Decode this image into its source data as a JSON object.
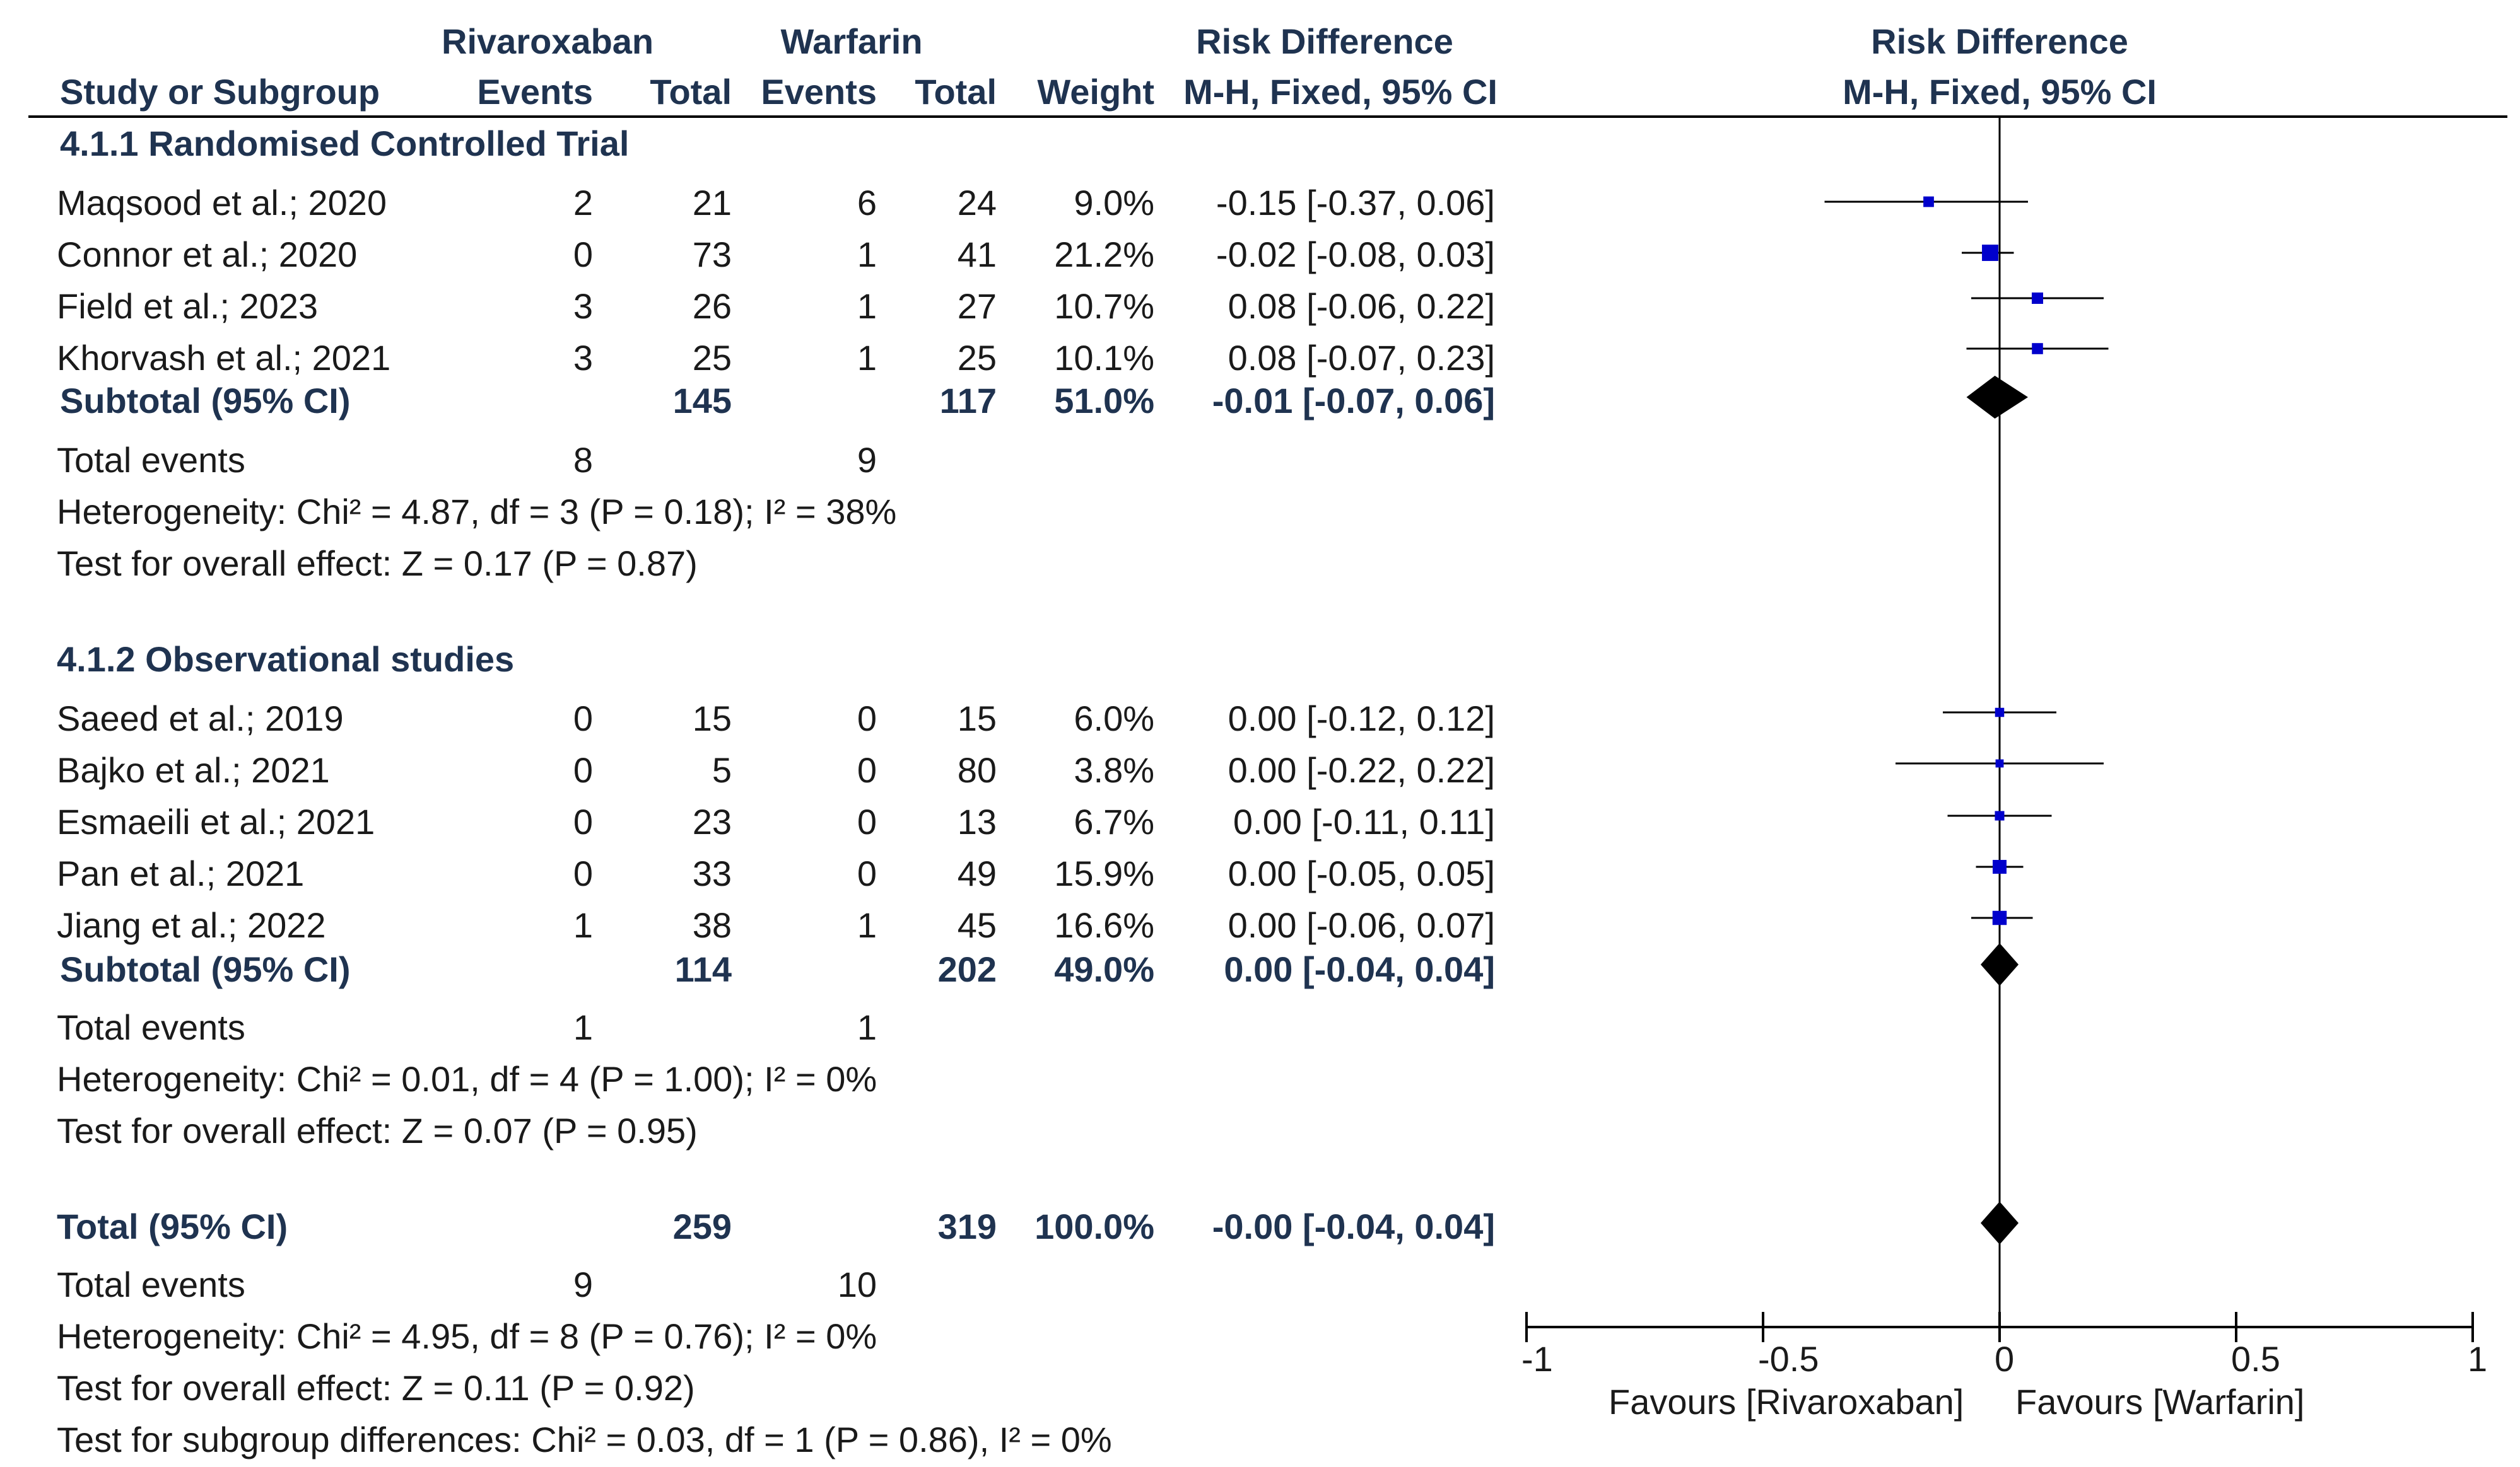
{
  "header": {
    "study_col": "Study or Subgroup",
    "group1": "Rivaroxaban",
    "group2": "Warfarin",
    "events": "Events",
    "total": "Total",
    "weight": "Weight",
    "rd_title": "Risk Difference",
    "rd_method": "M-H, Fixed, 95% CI",
    "plot_title": "Risk Difference",
    "plot_method": "M-H, Fixed, 95% CI"
  },
  "subgroups": [
    {
      "title": "4.1.1 Randomised Controlled Trial",
      "studies": [
        {
          "name": "Maqsood et al.; 2020",
          "e1": "2",
          "n1": "21",
          "e2": "6",
          "n2": "24",
          "weight": "9.0%",
          "ci": "-0.15 [-0.37, 0.06]"
        },
        {
          "name": "Connor et al.; 2020",
          "e1": "0",
          "n1": "73",
          "e2": "1",
          "n2": "41",
          "weight": "21.2%",
          "ci": "-0.02 [-0.08, 0.03]"
        },
        {
          "name": "Field et al.; 2023",
          "e1": "3",
          "n1": "26",
          "e2": "1",
          "n2": "27",
          "weight": "10.7%",
          "ci": "0.08 [-0.06, 0.22]"
        },
        {
          "name": "Khorvash et al.; 2021",
          "e1": "3",
          "n1": "25",
          "e2": "1",
          "n2": "25",
          "weight": "10.1%",
          "ci": "0.08 [-0.07, 0.23]"
        }
      ],
      "subtotal": {
        "label": "Subtotal (95% CI)",
        "n1": "145",
        "n2": "117",
        "weight": "51.0%",
        "ci": "-0.01 [-0.07, 0.06]"
      },
      "total_events": {
        "label": "Total events",
        "e1": "8",
        "e2": "9"
      },
      "heterogeneity": "Heterogeneity: Chi² = 4.87, df = 3 (P = 0.18); I² = 38%",
      "overall_effect": "Test for overall effect: Z = 0.17 (P = 0.87)"
    },
    {
      "title": "4.1.2 Observational studies",
      "studies": [
        {
          "name": "Saeed et al.; 2019",
          "e1": "0",
          "n1": "15",
          "e2": "0",
          "n2": "15",
          "weight": "6.0%",
          "ci": "0.00 [-0.12, 0.12]"
        },
        {
          "name": "Bajko et al.; 2021",
          "e1": "0",
          "n1": "5",
          "e2": "0",
          "n2": "80",
          "weight": "3.8%",
          "ci": "0.00 [-0.22, 0.22]"
        },
        {
          "name": "Esmaeili et al.; 2021",
          "e1": "0",
          "n1": "23",
          "e2": "0",
          "n2": "13",
          "weight": "6.7%",
          "ci": "0.00 [-0.11, 0.11]"
        },
        {
          "name": "Pan et al.; 2021",
          "e1": "0",
          "n1": "33",
          "e2": "0",
          "n2": "49",
          "weight": "15.9%",
          "ci": "0.00 [-0.05, 0.05]"
        },
        {
          "name": "Jiang et al.; 2022",
          "e1": "1",
          "n1": "38",
          "e2": "1",
          "n2": "45",
          "weight": "16.6%",
          "ci": "0.00 [-0.06, 0.07]"
        }
      ],
      "subtotal": {
        "label": "Subtotal (95% CI)",
        "n1": "114",
        "n2": "202",
        "weight": "49.0%",
        "ci": "0.00 [-0.04, 0.04]"
      },
      "total_events": {
        "label": "Total events",
        "e1": "1",
        "e2": "1"
      },
      "heterogeneity": "Heterogeneity: Chi² = 0.01, df = 4 (P = 1.00); I² = 0%",
      "overall_effect": "Test for overall effect: Z = 0.07 (P = 0.95)"
    }
  ],
  "overall": {
    "label": "Total (95% CI)",
    "n1": "259",
    "n2": "319",
    "weight": "100.0%",
    "ci": "-0.00 [-0.04, 0.04]",
    "total_events": {
      "label": "Total events",
      "e1": "9",
      "e2": "10"
    },
    "heterogeneity": "Heterogeneity: Chi² = 4.95, df = 8 (P = 0.76); I² = 0%",
    "overall_effect": "Test for overall effect: Z = 0.11 (P = 0.92)",
    "subgroup_diff": "Test for subgroup differences: Chi² = 0.03, df = 1 (P = 0.86), I² = 0%"
  },
  "chart_data": {
    "type": "forest",
    "title": "Risk Difference",
    "subtitle": "M-H, Fixed, 95% CI",
    "xlim": [
      -1,
      1
    ],
    "ticks": [
      -1,
      -0.5,
      0,
      0.5,
      1
    ],
    "tick_labels": [
      "-1",
      "-0.5",
      "0",
      "0.5",
      "1"
    ],
    "xlabel_left": "Favours [Rivaroxaban]",
    "xlabel_right": "Favours [Warfarin]",
    "marker_color": "#0000cc",
    "diamond_color": "#000000",
    "studies": [
      {
        "name": "Maqsood et al.; 2020",
        "est": -0.15,
        "lo": -0.37,
        "hi": 0.06,
        "weight": 9.0
      },
      {
        "name": "Connor et al.; 2020",
        "est": -0.02,
        "lo": -0.08,
        "hi": 0.03,
        "weight": 21.2
      },
      {
        "name": "Field et al.; 2023",
        "est": 0.08,
        "lo": -0.06,
        "hi": 0.22,
        "weight": 10.7
      },
      {
        "name": "Khorvash et al.; 2021",
        "est": 0.08,
        "lo": -0.07,
        "hi": 0.23,
        "weight": 10.1
      },
      {
        "name": "Saeed et al.; 2019",
        "est": 0.0,
        "lo": -0.12,
        "hi": 0.12,
        "weight": 6.0
      },
      {
        "name": "Bajko et al.; 2021",
        "est": 0.0,
        "lo": -0.22,
        "hi": 0.22,
        "weight": 3.8
      },
      {
        "name": "Esmaeili et al.; 2021",
        "est": 0.0,
        "lo": -0.11,
        "hi": 0.11,
        "weight": 6.7
      },
      {
        "name": "Pan et al.; 2021",
        "est": 0.0,
        "lo": -0.05,
        "hi": 0.05,
        "weight": 15.9
      },
      {
        "name": "Jiang et al.; 2022",
        "est": 0.0,
        "lo": -0.06,
        "hi": 0.07,
        "weight": 16.6
      }
    ],
    "summaries": [
      {
        "name": "Subtotal 4.1.1",
        "est": -0.01,
        "lo": -0.07,
        "hi": 0.06
      },
      {
        "name": "Subtotal 4.1.2",
        "est": 0.0,
        "lo": -0.04,
        "hi": 0.04
      },
      {
        "name": "Total",
        "est": -0.0,
        "lo": -0.04,
        "hi": 0.04
      }
    ]
  }
}
